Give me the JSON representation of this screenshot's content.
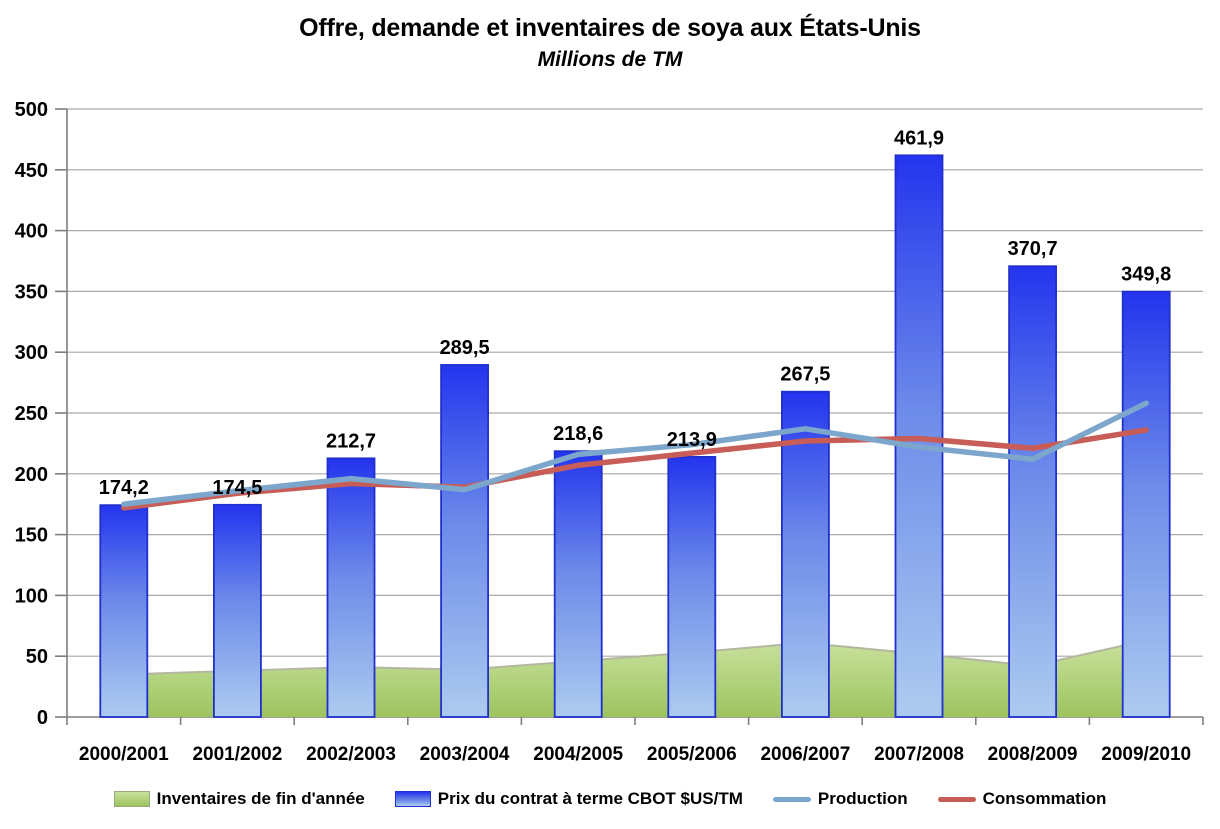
{
  "header": {
    "title": "Offre, demande et inventaires de soya aux États-Unis",
    "subtitle": "Millions de TM"
  },
  "chart_data": {
    "type": "combo",
    "title": "Offre, demande et inventaires de soya aux États-Unis",
    "subtitle": "Millions de TM",
    "categories": [
      "2000/2001",
      "2001/2002",
      "2002/2003",
      "2003/2004",
      "2004/2005",
      "2005/2006",
      "2006/2007",
      "2007/2008",
      "2008/2009",
      "2009/2010"
    ],
    "ylim": [
      0,
      500
    ],
    "yticks": [
      0,
      50,
      100,
      150,
      200,
      250,
      300,
      350,
      400,
      450,
      500
    ],
    "grid": true,
    "legend_position": "bottom",
    "grid_color": "#A9A9A9",
    "axis_color": "#7F7F7F",
    "text_color": "#000000",
    "series": [
      {
        "name": "Inventaires de fin d'année",
        "type": "area",
        "values": [
          35,
          38,
          41,
          39,
          46,
          53,
          61,
          52,
          42,
          63
        ],
        "fill_top": "#C9E19D",
        "fill_bottom": "#9DC45F",
        "edge": "#B3B7A0"
      },
      {
        "name": "Prix du contrat à terme CBOT $US/TM",
        "type": "bar",
        "values": [
          174.2,
          174.5,
          212.7,
          289.5,
          218.6,
          213.9,
          267.5,
          461.9,
          370.7,
          349.8
        ],
        "labels": [
          "174,2",
          "174,5",
          "212,7",
          "289,5",
          "218,6",
          "213,9",
          "267,5",
          "461,9",
          "370,7",
          "349,8"
        ],
        "fill_top": "#2434EE",
        "fill_mid": "#6C8AE9",
        "fill_bottom": "#ADCBEF",
        "border": "#2030CC"
      },
      {
        "name": "Production",
        "type": "line",
        "values": [
          175,
          186,
          196,
          187,
          216,
          224,
          237,
          222,
          212,
          258
        ],
        "color": "#7CA6CB"
      },
      {
        "name": "Consommation",
        "type": "line",
        "values": [
          172,
          184,
          192,
          189,
          207,
          217,
          227,
          229,
          221,
          236
        ],
        "color": "#C75D56"
      }
    ]
  }
}
